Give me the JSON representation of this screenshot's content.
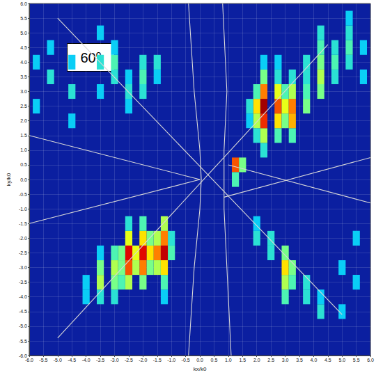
{
  "chart_data": {
    "type": "heatmap",
    "annotation": "60⁰",
    "xlabel": "kx/k0",
    "ylabel": "ky/k0",
    "xlim": [
      -6,
      6
    ],
    "ylim": [
      -6,
      6
    ],
    "xticks": [
      {
        "value": -6,
        "label": "-6.0"
      },
      -5.5,
      {
        "value": -5,
        "label": "-5.0"
      },
      -4.5,
      {
        "value": -4,
        "label": "-4.0"
      },
      -3.5,
      {
        "value": -3,
        "label": "-3.0"
      },
      -2.5,
      {
        "value": -2,
        "label": "-2.0"
      },
      -1.5,
      {
        "value": -1,
        "label": "-1.0"
      },
      -0.5,
      {
        "value": 0,
        "label": "0.0"
      },
      0.5,
      {
        "value": 1,
        "label": "1.0"
      },
      1.5,
      {
        "value": 2,
        "label": "2.0"
      },
      2.5,
      {
        "value": 3,
        "label": "3.0"
      },
      3.5,
      {
        "value": 4,
        "label": "4.0"
      },
      4.5,
      {
        "value": 5,
        "label": "5.0"
      },
      5.5,
      {
        "value": 6,
        "label": "6.0"
      }
    ],
    "yticks": [
      {
        "value": -6,
        "label": "-6.0"
      },
      -5.5,
      {
        "value": -5,
        "label": "-5.0"
      },
      -4.5,
      {
        "value": -4,
        "label": "-4.0"
      },
      -3.5,
      {
        "value": -3,
        "label": "-3.0"
      },
      -2.5,
      {
        "value": -2,
        "label": "-2.0"
      },
      -1.5,
      {
        "value": -1,
        "label": "-1.0"
      },
      -0.5,
      {
        "value": 0,
        "label": "0.0"
      },
      0.5,
      {
        "value": 1,
        "label": "1.0"
      },
      1.5,
      {
        "value": 2,
        "label": "2.0"
      },
      2.5,
      {
        "value": 3,
        "label": "3.0"
      },
      3.5,
      {
        "value": 4,
        "label": "4.0"
      },
      4.5,
      {
        "value": 5,
        "label": "5.0"
      },
      5.5,
      {
        "value": 6,
        "label": "6.0"
      }
    ],
    "grid": true,
    "zlim": [
      0,
      1
    ],
    "cells": [
      [
        2.25,
        1.0,
        0.35
      ],
      [
        2.25,
        1.5,
        0.5
      ],
      [
        2.25,
        2.0,
        0.8
      ],
      [
        2.25,
        2.5,
        0.95
      ],
      [
        2.25,
        3.0,
        0.7
      ],
      [
        2.25,
        3.5,
        0.45
      ],
      [
        2.25,
        4.0,
        0.3
      ],
      [
        2.0,
        1.5,
        0.35
      ],
      [
        2.0,
        2.0,
        0.5
      ],
      [
        2.0,
        2.5,
        0.6
      ],
      [
        2.0,
        3.0,
        0.4
      ],
      [
        2.75,
        1.5,
        0.4
      ],
      [
        2.75,
        2.0,
        0.6
      ],
      [
        2.75,
        2.5,
        0.75
      ],
      [
        2.75,
        3.0,
        0.55
      ],
      [
        2.75,
        3.5,
        0.35
      ],
      [
        2.75,
        4.0,
        0.3
      ],
      [
        3.0,
        2.0,
        0.45
      ],
      [
        3.0,
        2.5,
        0.55
      ],
      [
        3.0,
        3.0,
        0.4
      ],
      [
        3.25,
        1.5,
        0.4
      ],
      [
        3.25,
        2.0,
        0.65
      ],
      [
        3.25,
        2.5,
        0.7
      ],
      [
        3.25,
        3.0,
        0.5
      ],
      [
        3.25,
        3.5,
        0.35
      ],
      [
        3.75,
        2.5,
        0.45
      ],
      [
        3.75,
        3.0,
        0.4
      ],
      [
        3.75,
        3.5,
        0.35
      ],
      [
        3.75,
        4.0,
        0.35
      ],
      [
        4.25,
        3.0,
        0.45
      ],
      [
        4.25,
        3.5,
        0.5
      ],
      [
        4.25,
        4.0,
        0.45
      ],
      [
        4.25,
        4.5,
        0.4
      ],
      [
        4.25,
        5.0,
        0.35
      ],
      [
        4.75,
        3.5,
        0.35
      ],
      [
        4.75,
        4.0,
        0.4
      ],
      [
        4.75,
        4.5,
        0.35
      ],
      [
        5.25,
        4.0,
        0.35
      ],
      [
        5.25,
        4.5,
        0.4
      ],
      [
        5.25,
        5.0,
        0.35
      ],
      [
        5.25,
        5.5,
        0.3
      ],
      [
        5.75,
        3.5,
        0.3
      ],
      [
        5.75,
        4.5,
        0.3
      ],
      [
        1.75,
        2.0,
        0.3
      ],
      [
        1.75,
        2.5,
        0.35
      ],
      [
        1.25,
        0.5,
        0.75
      ],
      [
        1.25,
        0.0,
        0.4
      ],
      [
        1.5,
        0.5,
        0.45
      ],
      [
        -1.25,
        -4.0,
        0.3
      ],
      [
        -1.25,
        -3.5,
        0.4
      ],
      [
        -1.25,
        -3.0,
        0.6
      ],
      [
        -1.25,
        -2.5,
        0.9
      ],
      [
        -1.25,
        -2.0,
        0.7
      ],
      [
        -1.25,
        -1.5,
        0.5
      ],
      [
        -1.5,
        -3.0,
        0.5
      ],
      [
        -1.5,
        -2.5,
        0.7
      ],
      [
        -1.5,
        -2.0,
        0.5
      ],
      [
        -1.75,
        -3.0,
        0.45
      ],
      [
        -1.75,
        -2.5,
        0.6
      ],
      [
        -1.75,
        -2.0,
        0.45
      ],
      [
        -2.0,
        -3.5,
        0.45
      ],
      [
        -2.0,
        -3.0,
        0.7
      ],
      [
        -2.0,
        -2.5,
        0.85
      ],
      [
        -2.0,
        -2.0,
        0.6
      ],
      [
        -2.0,
        -1.5,
        0.4
      ],
      [
        -2.25,
        -3.0,
        0.5
      ],
      [
        -2.25,
        -2.5,
        0.55
      ],
      [
        -2.5,
        -3.5,
        0.5
      ],
      [
        -2.5,
        -3.0,
        0.75
      ],
      [
        -2.5,
        -2.5,
        0.85
      ],
      [
        -2.5,
        -2.0,
        0.55
      ],
      [
        -2.5,
        -1.5,
        0.35
      ],
      [
        -2.75,
        -3.5,
        0.4
      ],
      [
        -2.75,
        -3.0,
        0.45
      ],
      [
        -2.75,
        -2.5,
        0.45
      ],
      [
        -3.0,
        -4.0,
        0.35
      ],
      [
        -3.0,
        -3.5,
        0.45
      ],
      [
        -3.0,
        -3.0,
        0.5
      ],
      [
        -3.0,
        -2.5,
        0.4
      ],
      [
        -3.5,
        -4.0,
        0.35
      ],
      [
        -3.5,
        -3.5,
        0.5
      ],
      [
        -3.5,
        -3.0,
        0.45
      ],
      [
        -3.5,
        -2.5,
        0.3
      ],
      [
        -4.0,
        -4.0,
        0.3
      ],
      [
        -4.0,
        -3.5,
        0.3
      ],
      [
        -1.0,
        -2.5,
        0.4
      ],
      [
        -1.0,
        -2.0,
        0.35
      ],
      [
        -1.5,
        3.5,
        0.3
      ],
      [
        -1.5,
        4.0,
        0.35
      ],
      [
        -2.0,
        3.0,
        0.35
      ],
      [
        -2.0,
        3.5,
        0.4
      ],
      [
        -2.0,
        4.0,
        0.35
      ],
      [
        -2.5,
        2.5,
        0.3
      ],
      [
        -2.5,
        3.0,
        0.35
      ],
      [
        -2.5,
        3.5,
        0.3
      ],
      [
        -3.0,
        3.5,
        0.35
      ],
      [
        -3.0,
        4.0,
        0.4
      ],
      [
        -3.0,
        4.5,
        0.3
      ],
      [
        -3.5,
        3.0,
        0.3
      ],
      [
        -3.5,
        4.0,
        0.35
      ],
      [
        -3.5,
        5.0,
        0.3
      ],
      [
        -4.5,
        2.0,
        0.3
      ],
      [
        -4.5,
        3.0,
        0.35
      ],
      [
        -4.5,
        4.0,
        0.3
      ],
      [
        -5.25,
        3.5,
        0.35
      ],
      [
        -5.25,
        4.5,
        0.3
      ],
      [
        -5.75,
        2.5,
        0.3
      ],
      [
        -5.75,
        4.0,
        0.3
      ],
      [
        2.0,
        -2.0,
        0.35
      ],
      [
        2.0,
        -1.5,
        0.3
      ],
      [
        2.5,
        -2.5,
        0.35
      ],
      [
        2.5,
        -2.0,
        0.35
      ],
      [
        3.0,
        -4.0,
        0.4
      ],
      [
        3.0,
        -3.5,
        0.5
      ],
      [
        3.0,
        -3.0,
        0.6
      ],
      [
        3.0,
        -2.5,
        0.45
      ],
      [
        3.25,
        -3.5,
        0.4
      ],
      [
        3.25,
        -3.0,
        0.45
      ],
      [
        3.75,
        -4.0,
        0.35
      ],
      [
        3.75,
        -3.5,
        0.35
      ],
      [
        4.25,
        -4.5,
        0.35
      ],
      [
        4.25,
        -4.0,
        0.3
      ],
      [
        5.0,
        -4.5,
        0.3
      ],
      [
        5.0,
        -3.0,
        0.3
      ],
      [
        5.5,
        -3.5,
        0.3
      ],
      [
        5.5,
        -2.0,
        0.3
      ]
    ],
    "curves": [
      {
        "color": "#d8d8d8",
        "x": [
          -6,
          0
        ],
        "y": [
          1.5,
          0
        ]
      },
      {
        "color": "#d8d8d8",
        "x": [
          -6,
          0
        ],
        "y": [
          -1.5,
          0
        ]
      },
      {
        "color": "#d8d8d8",
        "x": [
          -0.4,
          -0.2,
          0,
          0.05,
          0,
          -0.2,
          -0.4
        ],
        "y": [
          6,
          3,
          1,
          0,
          -1,
          -3,
          -6
        ]
      },
      {
        "color": "#d8d8d8",
        "x": [
          0.8,
          0.95,
          0.85,
          0.85,
          0.85,
          0.95,
          1.1
        ],
        "y": [
          6,
          3,
          1,
          0,
          -1,
          -3,
          -6
        ]
      },
      {
        "color": "#d8d8d8",
        "x": [
          0.85,
          6
        ],
        "y": [
          -0.6,
          0.75
        ]
      },
      {
        "color": "#d8d8d8",
        "x": [
          1.0,
          6
        ],
        "y": [
          0.5,
          -0.8
        ]
      },
      {
        "color": "#d8d8d8",
        "x": [
          -5,
          4.5
        ],
        "y": [
          -5.4,
          4.6
        ]
      },
      {
        "color": "#d8d8d8",
        "x": [
          -5,
          5
        ],
        "y": [
          5.5,
          -4.6
        ]
      }
    ]
  }
}
